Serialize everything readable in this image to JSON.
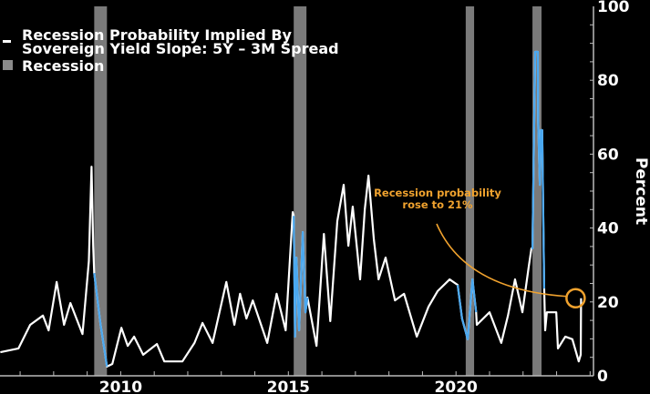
{
  "chart_data": {
    "type": "line",
    "title": "",
    "xlabel": "",
    "ylabel": "Percent",
    "xlim": [
      2006.4,
      2024.1
    ],
    "ylim": [
      0,
      100
    ],
    "x_tick_labels": [
      "2010",
      "2015",
      "2020"
    ],
    "x_ticks": [
      2010,
      2015,
      2020
    ],
    "y_ticks": [
      0,
      20,
      40,
      60,
      80,
      100
    ],
    "y_tick_labels": [
      "0",
      "20",
      "40",
      "60",
      "80",
      "100"
    ],
    "y_axis_side": "right",
    "grid": false,
    "legend_placement": "top-left",
    "legend": [
      {
        "label": "Recession Probability Implied By",
        "label2": "Sovereign Yield Slope: 5Y – 3M Spread",
        "kind": "line",
        "color": "#ffffff"
      },
      {
        "label": "Recession",
        "kind": "box",
        "color": "#7a7a7a"
      }
    ],
    "recessions": [
      [
        2009.21,
        2009.59
      ],
      [
        2015.16,
        2015.54
      ],
      [
        2020.29,
        2020.54
      ],
      [
        2022.28,
        2022.55
      ]
    ],
    "highlight_periods": [
      [
        2009.2,
        2009.6
      ],
      [
        2015.15,
        2015.57
      ],
      [
        2020.05,
        2020.61
      ],
      [
        2022.24,
        2022.64
      ]
    ],
    "highlight_color": "#4aa8f0",
    "line_color": "#ffffff",
    "series": [
      {
        "x": [
          2006.41,
          2006.95,
          2007.3,
          2007.68,
          2007.85,
          2008.09,
          2008.31,
          2008.5,
          2008.86,
          2009.05,
          2009.13,
          2009.18,
          2009.21,
          2009.4,
          2009.59,
          2009.75,
          2010.02,
          2010.21,
          2010.4,
          2010.67,
          2011.08,
          2011.3,
          2011.84,
          2012.2,
          2012.44,
          2012.74,
          2013.15,
          2013.39,
          2013.56,
          2013.75,
          2013.94,
          2014.37,
          2014.65,
          2014.92,
          2015.13,
          2015.16,
          2015.2,
          2015.24,
          2015.32,
          2015.43,
          2015.51,
          2015.57,
          2015.84,
          2016.06,
          2016.25,
          2016.46,
          2016.65,
          2016.79,
          2016.92,
          2017.14,
          2017.28,
          2017.39,
          2017.55,
          2017.69,
          2017.9,
          2018.18,
          2018.45,
          2018.83,
          2019.18,
          2019.45,
          2019.81,
          2020.05,
          2020.18,
          2020.35,
          2020.49,
          2020.6,
          2020.62,
          2021.0,
          2021.35,
          2021.55,
          2021.76,
          2021.98,
          2022.17,
          2022.25,
          2022.28,
          2022.36,
          2022.44,
          2022.45,
          2022.5,
          2022.53,
          2022.57,
          2022.63,
          2022.66,
          2022.71,
          2022.99,
          2023.04,
          2023.26,
          2023.47,
          2023.66,
          2023.72,
          2023.73
        ],
        "y": [
          6.4,
          7.4,
          13.8,
          16.3,
          12.3,
          25.4,
          13.8,
          19.7,
          11.3,
          31,
          56.6,
          35,
          27.8,
          13.8,
          2.5,
          3.2,
          13,
          8.1,
          10.6,
          5.7,
          8.6,
          3.9,
          3.9,
          8.9,
          14.3,
          8.9,
          25.4,
          13.8,
          22.2,
          15.5,
          20.4,
          8.9,
          22.2,
          12.3,
          44.3,
          43.3,
          10.6,
          32,
          12.3,
          38.9,
          17.2,
          21.2,
          8.1,
          38.4,
          14.8,
          41.9,
          51.7,
          35.2,
          45.8,
          26.1,
          45.1,
          54.2,
          36.9,
          26.1,
          32,
          20.4,
          22.2,
          10.6,
          18.7,
          22.9,
          26.1,
          24.6,
          15.5,
          9.9,
          26.1,
          17.2,
          13.8,
          17.2,
          8.9,
          16.3,
          26.1,
          17.2,
          29.6,
          34.5,
          34.5,
          87.7,
          87.7,
          69,
          51.7,
          66.5,
          66.5,
          23.6,
          12.3,
          17.2,
          17.2,
          7.4,
          10.6,
          9.9,
          3.9,
          5.7,
          21
        ]
      }
    ],
    "annotation": {
      "line1": "Recession probability",
      "line2": "rose to 21%",
      "target_x": 2023.73,
      "target_y": 21,
      "color": "#f0a22e"
    }
  }
}
